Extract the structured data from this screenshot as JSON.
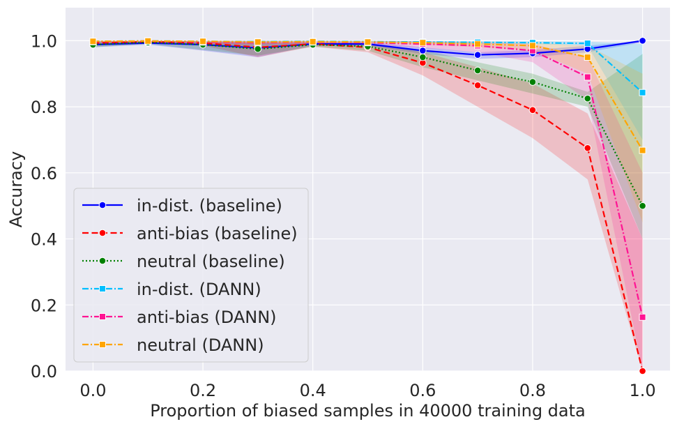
{
  "chart_data": {
    "type": "line",
    "title": "",
    "xlabel": "Proportion of biased samples in 40000 training data",
    "ylabel": "Accuracy",
    "xlim": [
      -0.05,
      1.05
    ],
    "ylim": [
      0.0,
      1.1
    ],
    "x_ticks": [
      "0.0",
      "0.2",
      "0.4",
      "0.6",
      "0.8",
      "1.0"
    ],
    "y_ticks": [
      "0.0",
      "0.2",
      "0.4",
      "0.6",
      "0.8",
      "1.0"
    ],
    "grid": true,
    "legend_position": "lower-left",
    "background_color": "#eaeaf2",
    "x": [
      0.0,
      0.1,
      0.2,
      0.3,
      0.4,
      0.5,
      0.6,
      0.7,
      0.8,
      0.9,
      1.0
    ],
    "series": [
      {
        "name": "in-dist. (baseline)",
        "color": "#0000ff",
        "linestyle": "solid",
        "marker": "circle",
        "values": [
          0.988,
          0.993,
          0.988,
          0.978,
          0.99,
          0.99,
          0.97,
          0.957,
          0.962,
          0.975,
          1.0
        ],
        "lower": [
          0.98,
          0.988,
          0.97,
          0.95,
          0.985,
          0.984,
          0.96,
          0.945,
          0.95,
          0.965,
          0.995
        ],
        "upper": [
          0.996,
          0.998,
          0.997,
          0.995,
          0.995,
          0.996,
          0.98,
          0.965,
          0.972,
          0.985,
          1.0
        ]
      },
      {
        "name": "anti-bias (baseline)",
        "color": "#ff0000",
        "linestyle": "dashed",
        "marker": "circle",
        "values": [
          0.993,
          0.997,
          0.993,
          0.98,
          0.99,
          0.98,
          0.933,
          0.865,
          0.79,
          0.675,
          0.0
        ],
        "lower": [
          0.988,
          0.994,
          0.985,
          0.95,
          0.982,
          0.965,
          0.895,
          0.8,
          0.705,
          0.58,
          0.0
        ],
        "upper": [
          0.998,
          1.0,
          0.998,
          0.997,
          0.997,
          0.993,
          0.965,
          0.92,
          0.87,
          0.78,
          0.4
        ]
      },
      {
        "name": "neutral (baseline)",
        "color": "#008000",
        "linestyle": "dotted",
        "marker": "circle",
        "values": [
          0.988,
          0.995,
          0.988,
          0.975,
          0.988,
          0.983,
          0.95,
          0.91,
          0.875,
          0.825,
          0.5
        ],
        "lower": [
          0.98,
          0.99,
          0.972,
          0.955,
          0.982,
          0.97,
          0.92,
          0.88,
          0.84,
          0.8,
          0.4
        ],
        "upper": [
          0.995,
          0.999,
          0.997,
          0.992,
          0.994,
          0.993,
          0.972,
          0.935,
          0.9,
          0.845,
          0.96
        ]
      },
      {
        "name": "in-dist. (DANN)",
        "color": "#00bfff",
        "linestyle": "dashdot",
        "marker": "square",
        "values": [
          0.998,
          0.999,
          0.998,
          0.997,
          0.998,
          0.997,
          0.996,
          0.995,
          0.994,
          0.992,
          0.843
        ],
        "lower": [
          0.995,
          0.997,
          0.995,
          0.994,
          0.995,
          0.994,
          0.993,
          0.991,
          0.99,
          0.985,
          0.7
        ],
        "upper": [
          1.0,
          1.0,
          1.0,
          1.0,
          1.0,
          1.0,
          0.999,
          0.998,
          0.998,
          0.997,
          0.99
        ]
      },
      {
        "name": "anti-bias (DANN)",
        "color": "#ff1493",
        "linestyle": "dashdot",
        "marker": "square",
        "values": [
          0.997,
          0.999,
          0.996,
          0.994,
          0.996,
          0.994,
          0.99,
          0.985,
          0.97,
          0.89,
          0.163
        ],
        "lower": [
          0.993,
          0.996,
          0.992,
          0.988,
          0.992,
          0.988,
          0.978,
          0.965,
          0.935,
          0.82,
          0.0
        ],
        "upper": [
          1.0,
          1.0,
          1.0,
          1.0,
          1.0,
          0.999,
          0.998,
          0.995,
          0.99,
          0.95,
          0.6
        ]
      },
      {
        "name": "neutral (DANN)",
        "color": "#ffa500",
        "linestyle": "dashdot",
        "marker": "square",
        "values": [
          0.998,
          0.999,
          0.998,
          0.996,
          0.997,
          0.996,
          0.994,
          0.99,
          0.985,
          0.95,
          0.668
        ],
        "lower": [
          0.995,
          0.997,
          0.995,
          0.992,
          0.994,
          0.993,
          0.988,
          0.98,
          0.97,
          0.9,
          0.45
        ],
        "upper": [
          1.0,
          1.0,
          1.0,
          1.0,
          1.0,
          0.999,
          0.998,
          0.996,
          0.994,
          0.985,
          0.9
        ]
      }
    ]
  }
}
